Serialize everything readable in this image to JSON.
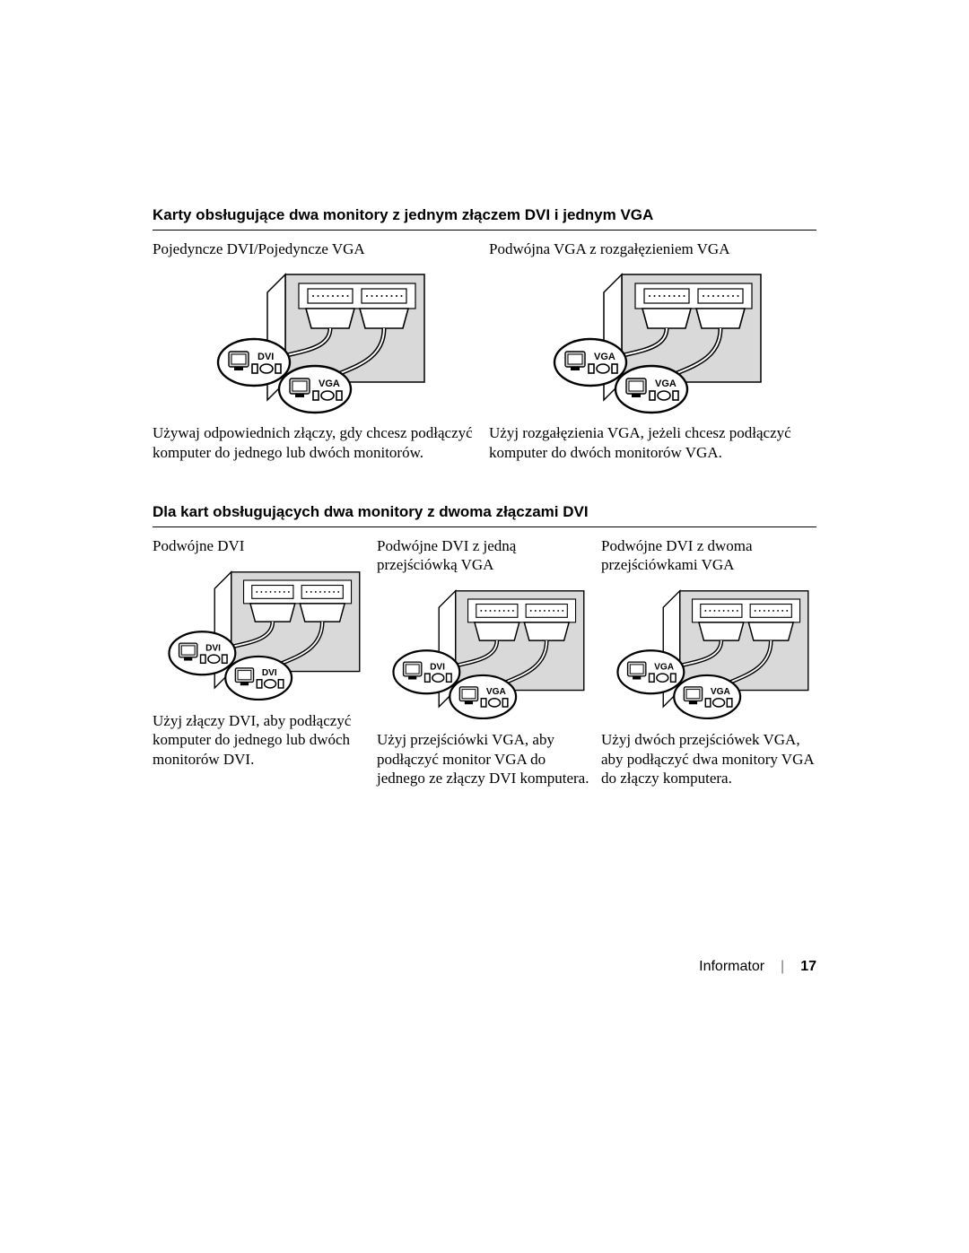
{
  "page": {
    "footer_label": "Informator",
    "page_number": "17"
  },
  "section1": {
    "heading": "Karty obsługujące dwa monitory z jednym złączem DVI i jednym VGA",
    "col1": {
      "subhead": "Pojedyncze DVI/Pojedyncze VGA",
      "body": "Używaj odpowiednich złączy, gdy chcesz podłączyć komputer do jednego lub dwóch monitorów.",
      "labels": {
        "a": "DVI",
        "b": "VGA"
      }
    },
    "col2": {
      "subhead": "Podwójna VGA z rozgałęzieniem VGA",
      "body": "Użyj rozgałęzienia VGA, jeżeli chcesz podłączyć komputer do dwóch monitorów VGA.",
      "labels": {
        "a": "VGA",
        "b": "VGA"
      }
    }
  },
  "section2": {
    "heading": "Dla kart obsługujących dwa monitory z dwoma złączami DVI",
    "col1": {
      "subhead": "Podwójne DVI",
      "body": "Użyj złączy DVI, aby podłączyć komputer do jednego lub dwóch monitorów DVI.",
      "labels": {
        "a": "DVI",
        "b": "DVI"
      }
    },
    "col2": {
      "subhead": "Podwójne DVI z jedną przejściówką VGA",
      "body": "Użyj przejściówki VGA, aby podłączyć monitor VGA do jednego ze złączy DVI komputera.",
      "labels": {
        "a": "DVI",
        "b": "VGA"
      }
    },
    "col3": {
      "subhead": "Podwójne DVI z dwoma przejściówkami VGA",
      "body": "Użyj dwóch przejściówek VGA, aby podłączyć dwa monitory VGA do złączy komputera.",
      "labels": {
        "a": "VGA",
        "b": "VGA"
      }
    }
  },
  "style": {
    "text_color": "#000000",
    "bg_color": "#ffffff",
    "rule_color": "#000000",
    "heading_font": "Arial",
    "body_font": "Times New Roman",
    "heading_fontsize": 17,
    "body_fontsize": 17,
    "footer_fontsize": 16,
    "diagram_stroke": "#000000",
    "diagram_fill": "#ffffff",
    "diagram_shade": "#d9d9d9"
  }
}
